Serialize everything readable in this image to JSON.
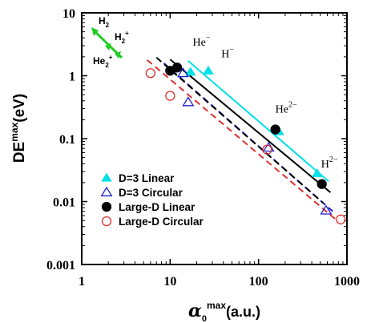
{
  "chart_data": {
    "type": "scatter",
    "x_scale": "log",
    "y_scale": "log",
    "xlim": [
      1,
      1000
    ],
    "ylim": [
      0.001,
      10
    ],
    "x_ticks": [
      "1",
      "10",
      "100",
      "1000"
    ],
    "y_ticks": [
      "0.001",
      "0.01",
      "0.1",
      "1",
      "10"
    ],
    "xlabel": {
      "base": "α",
      "sub": "0",
      "sup": "max",
      "unit": "(a.u.)"
    },
    "ylabel": {
      "base": "DE",
      "sup": "max",
      "unit": "(eV)"
    },
    "legend_position": "lower-left",
    "series": [
      {
        "name": "D=3 Linear",
        "marker": "triangle-filled",
        "color": "#00e0e8",
        "points": [
          [
            17,
            1.15
          ],
          [
            27,
            1.2
          ],
          [
            170,
            0.13
          ],
          [
            460,
            0.028
          ]
        ],
        "fit": {
          "from": [
            16,
            1.72
          ],
          "to": [
            620,
            0.021
          ],
          "style": "solid"
        }
      },
      {
        "name": "D=3 Circular",
        "marker": "triangle-open",
        "color": "#2020d0",
        "points": [
          [
            14,
            1.1
          ],
          [
            16,
            0.38
          ],
          [
            130,
            0.072
          ],
          [
            580,
            0.0072
          ]
        ],
        "fit": {
          "from": [
            8.5,
            1.58
          ],
          "to": [
            690,
            0.007
          ],
          "style": "dashed"
        }
      },
      {
        "name": "Large-D Linear",
        "marker": "circle-filled",
        "color": "#000000",
        "points": [
          [
            10,
            1.2
          ],
          [
            12,
            1.35
          ],
          [
            155,
            0.14
          ],
          [
            520,
            0.019
          ]
        ],
        "fit": {
          "from": [
            10,
            1.82
          ],
          "to": [
            650,
            0.014
          ],
          "style": "solid"
        }
      },
      {
        "name": "Large-D Circular",
        "marker": "circle-open",
        "color": "#e03030",
        "points": [
          [
            6,
            1.1
          ],
          [
            10,
            0.48
          ],
          [
            125,
            0.067
          ],
          [
            850,
            0.0052
          ]
        ],
        "fit": {
          "from": [
            5.5,
            1.78
          ],
          "to": [
            800,
            0.0048
          ],
          "style": "dashed"
        }
      }
    ],
    "extra_lines": [
      {
        "color": "#000000",
        "style": "dashed",
        "from": [
          7,
          1.95
        ],
        "to": [
          540,
          0.0095
        ]
      }
    ],
    "annotations": [
      {
        "base": "He",
        "sup": "−",
        "x": 18,
        "y": 3.0
      },
      {
        "base": "H",
        "sup": "−",
        "x": 38,
        "y": 1.95
      },
      {
        "base": "He",
        "sup": "2−",
        "x": 155,
        "y": 0.26
      },
      {
        "base": "H",
        "sup": "2−",
        "x": 510,
        "y": 0.035
      }
    ],
    "molecule_inset": {
      "color": "#22cc22",
      "labels": [
        {
          "base": "H",
          "sub": "2"
        },
        {
          "base": "H",
          "sub": "2",
          "sup": "+"
        },
        {
          "base": "He",
          "sub": "2",
          "sup": "+"
        }
      ]
    }
  }
}
